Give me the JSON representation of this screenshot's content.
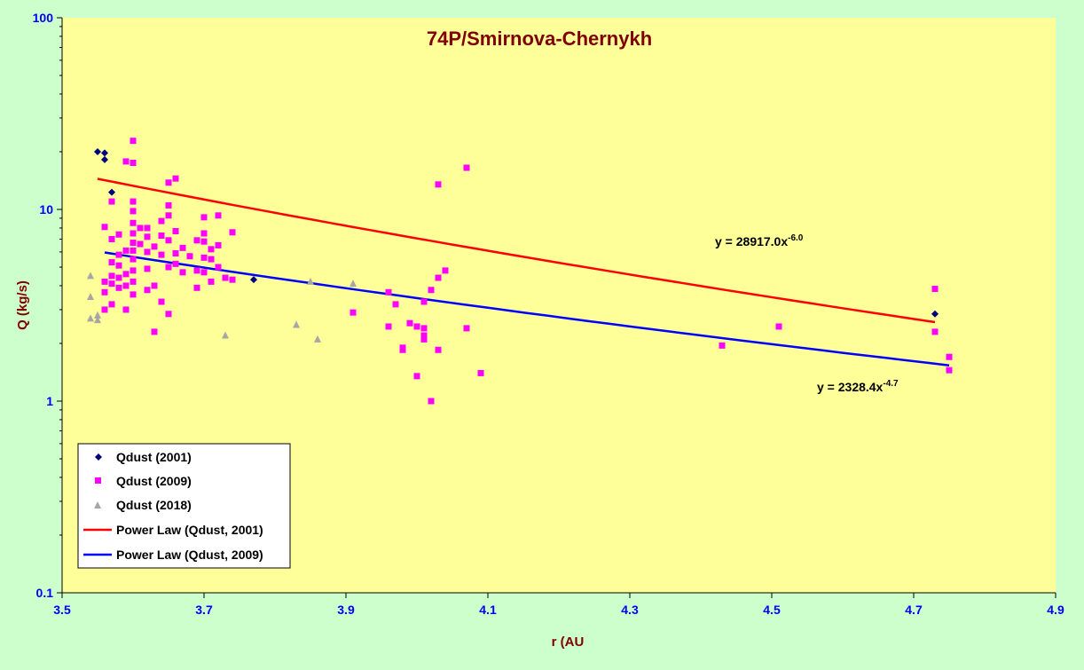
{
  "chart_data": {
    "type": "scatter",
    "title": "74P/Smirnova-Chernykh",
    "xlabel": "r (AU",
    "ylabel": "Q (kg/s)",
    "xlim": [
      3.5,
      4.9
    ],
    "ylim": [
      0.1,
      100
    ],
    "y_scale": "log",
    "x_ticks": [
      "3.5",
      "3.7",
      "3.9",
      "4.1",
      "4.3",
      "4.5",
      "4.7",
      "4.9"
    ],
    "y_ticks": [
      "0.1",
      "1",
      "10",
      "100"
    ],
    "grid": false,
    "legend_position": "bottom-left",
    "colors": {
      "background": "#ccffcc",
      "plot_area": "#ffff99",
      "title": "#800000",
      "axis_label": "#800000",
      "tick_label": "#0000ff",
      "series_2001": "#000080",
      "series_2009": "#ff00ff",
      "series_2018": "#a6a6a6",
      "trend_2001": "#ff0000",
      "trend_2009": "#0000ff"
    },
    "series": [
      {
        "name": "Qdust (2001)",
        "marker": "diamond",
        "points": [
          [
            3.55,
            20.0
          ],
          [
            3.56,
            19.7
          ],
          [
            3.56,
            18.2
          ],
          [
            3.57,
            12.3
          ],
          [
            3.77,
            4.3
          ],
          [
            4.73,
            2.85
          ]
        ]
      },
      {
        "name": "Qdust (2009)",
        "marker": "square",
        "points": [
          [
            3.6,
            22.8
          ],
          [
            3.59,
            17.8
          ],
          [
            3.6,
            17.5
          ],
          [
            3.66,
            14.5
          ],
          [
            3.65,
            13.8
          ],
          [
            3.6,
            11.0
          ],
          [
            3.57,
            11.0
          ],
          [
            3.65,
            10.5
          ],
          [
            3.6,
            9.8
          ],
          [
            3.65,
            9.3
          ],
          [
            3.7,
            9.1
          ],
          [
            3.72,
            9.3
          ],
          [
            3.64,
            8.7
          ],
          [
            3.6,
            8.5
          ],
          [
            3.61,
            8.0
          ],
          [
            3.56,
            8.1
          ],
          [
            3.62,
            8.0
          ],
          [
            3.66,
            7.7
          ],
          [
            3.74,
            7.6
          ],
          [
            3.7,
            7.5
          ],
          [
            3.58,
            7.4
          ],
          [
            3.6,
            7.5
          ],
          [
            3.64,
            7.3
          ],
          [
            3.62,
            7.2
          ],
          [
            3.57,
            7.0
          ],
          [
            3.65,
            6.9
          ],
          [
            3.69,
            6.9
          ],
          [
            3.7,
            6.8
          ],
          [
            3.6,
            6.7
          ],
          [
            3.61,
            6.6
          ],
          [
            3.72,
            6.5
          ],
          [
            3.63,
            6.4
          ],
          [
            3.67,
            6.3
          ],
          [
            3.71,
            6.2
          ],
          [
            3.6,
            6.1
          ],
          [
            3.62,
            6.0
          ],
          [
            3.59,
            6.1
          ],
          [
            3.66,
            5.9
          ],
          [
            3.58,
            5.8
          ],
          [
            3.64,
            5.8
          ],
          [
            3.68,
            5.7
          ],
          [
            3.7,
            5.6
          ],
          [
            3.71,
            5.5
          ],
          [
            3.6,
            5.5
          ],
          [
            3.57,
            5.3
          ],
          [
            3.66,
            5.2
          ],
          [
            3.58,
            5.1
          ],
          [
            3.65,
            5.0
          ],
          [
            3.72,
            5.0
          ],
          [
            3.62,
            4.9
          ],
          [
            3.6,
            4.8
          ],
          [
            3.69,
            4.8
          ],
          [
            3.7,
            4.7
          ],
          [
            3.59,
            4.6
          ],
          [
            3.67,
            4.7
          ],
          [
            3.57,
            4.5
          ],
          [
            3.58,
            4.4
          ],
          [
            3.73,
            4.4
          ],
          [
            3.56,
            4.2
          ],
          [
            3.6,
            4.2
          ],
          [
            3.71,
            4.2
          ],
          [
            3.74,
            4.3
          ],
          [
            3.63,
            4.0
          ],
          [
            3.57,
            4.1
          ],
          [
            3.59,
            4.0
          ],
          [
            3.58,
            3.9
          ],
          [
            3.69,
            3.9
          ],
          [
            3.62,
            3.8
          ],
          [
            3.56,
            3.7
          ],
          [
            3.6,
            3.6
          ],
          [
            3.64,
            3.3
          ],
          [
            3.57,
            3.2
          ],
          [
            3.56,
            3.0
          ],
          [
            3.59,
            3.0
          ],
          [
            3.65,
            2.85
          ],
          [
            3.63,
            2.3
          ],
          [
            3.96,
            3.7
          ],
          [
            3.97,
            3.2
          ],
          [
            3.91,
            2.9
          ],
          [
            3.96,
            2.45
          ],
          [
            3.99,
            2.55
          ],
          [
            4.0,
            2.45
          ],
          [
            4.01,
            2.4
          ],
          [
            4.01,
            2.2
          ],
          [
            4.01,
            2.1
          ],
          [
            3.98,
            1.9
          ],
          [
            3.98,
            1.85
          ],
          [
            4.03,
            1.85
          ],
          [
            4.0,
            1.35
          ],
          [
            4.02,
            1.0
          ],
          [
            4.03,
            13.5
          ],
          [
            4.07,
            16.5
          ],
          [
            4.02,
            3.8
          ],
          [
            4.03,
            4.4
          ],
          [
            4.04,
            4.8
          ],
          [
            4.01,
            3.3
          ],
          [
            4.07,
            2.4
          ],
          [
            4.09,
            1.4
          ],
          [
            4.43,
            1.95
          ],
          [
            4.51,
            2.45
          ],
          [
            4.73,
            3.85
          ],
          [
            4.73,
            2.3
          ],
          [
            4.75,
            1.7
          ],
          [
            4.75,
            1.45
          ]
        ]
      },
      {
        "name": "Qdust (2018)",
        "marker": "triangle",
        "points": [
          [
            3.54,
            4.5
          ],
          [
            3.54,
            3.5
          ],
          [
            3.54,
            2.7
          ],
          [
            3.55,
            2.8
          ],
          [
            3.55,
            2.65
          ],
          [
            3.73,
            2.2
          ],
          [
            3.83,
            2.5
          ],
          [
            3.86,
            2.1
          ],
          [
            3.85,
            4.2
          ],
          [
            3.91,
            4.1
          ]
        ]
      }
    ],
    "trendlines": [
      {
        "name": "Power Law (Qdust, 2001)",
        "coefficient": 28917.0,
        "exponent": -6.0,
        "x_range": [
          3.55,
          4.73
        ],
        "label_coef": "y = 28917.0x",
        "label_exp": "-6.0"
      },
      {
        "name": "Power Law (Qdust, 2009)",
        "coefficient": 2328.4,
        "exponent": -4.7,
        "x_range": [
          3.56,
          4.75
        ],
        "label_coef": "y = 2328.4x",
        "label_exp": "-4.7"
      }
    ]
  }
}
